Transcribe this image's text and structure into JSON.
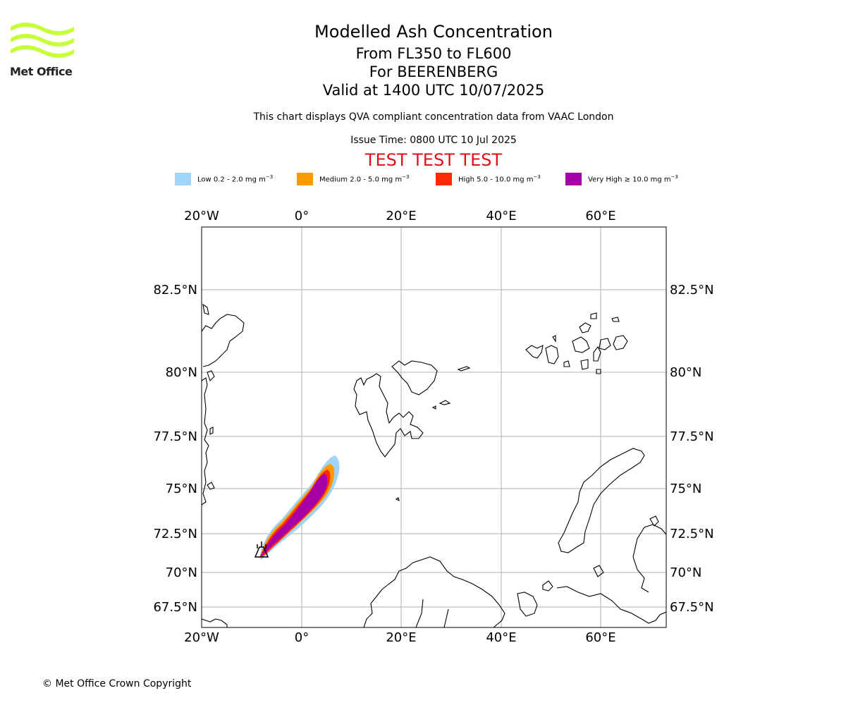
{
  "logo": {
    "name": "Met Office"
  },
  "header": {
    "title": "Modelled Ash Concentration",
    "levels": "From FL350 to FL600",
    "volcano": "For BEERENBERG",
    "valid": "Valid at 1400 UTC 10/07/2025",
    "note": "This chart displays QVA compliant concentration data from VAAC London",
    "issue": "Issue Time: 0800 UTC 10 Jul 2025",
    "test": "TEST TEST TEST"
  },
  "legend": [
    {
      "name": "Low",
      "range": "0.2 - 2.0 mg m",
      "color": "#a0d4fa"
    },
    {
      "name": "Medium",
      "range": "2.0 - 5.0 mg m",
      "color": "#ff9a05"
    },
    {
      "name": "High",
      "range": "5.0 - 10.0 mg m",
      "color": "#ff2a00"
    },
    {
      "name": "Very High",
      "range": "≥  10.0 mg m",
      "color": "#a600a6"
    }
  ],
  "legend_unit_exp": "−3",
  "map": {
    "lon_ticks": [
      "20°W",
      "0°",
      "20°E",
      "40°E",
      "60°E"
    ],
    "lat_ticks": [
      "82.5°N",
      "80°N",
      "77.5°N",
      "75°N",
      "72.5°N",
      "70°N",
      "67.5°N"
    ],
    "grid": true,
    "plume": "ash cloud extending north-east from Beerenberg",
    "volcano_icon": "volcano-icon"
  },
  "footer": {
    "copyright": "© Met Office Crown Copyright"
  }
}
